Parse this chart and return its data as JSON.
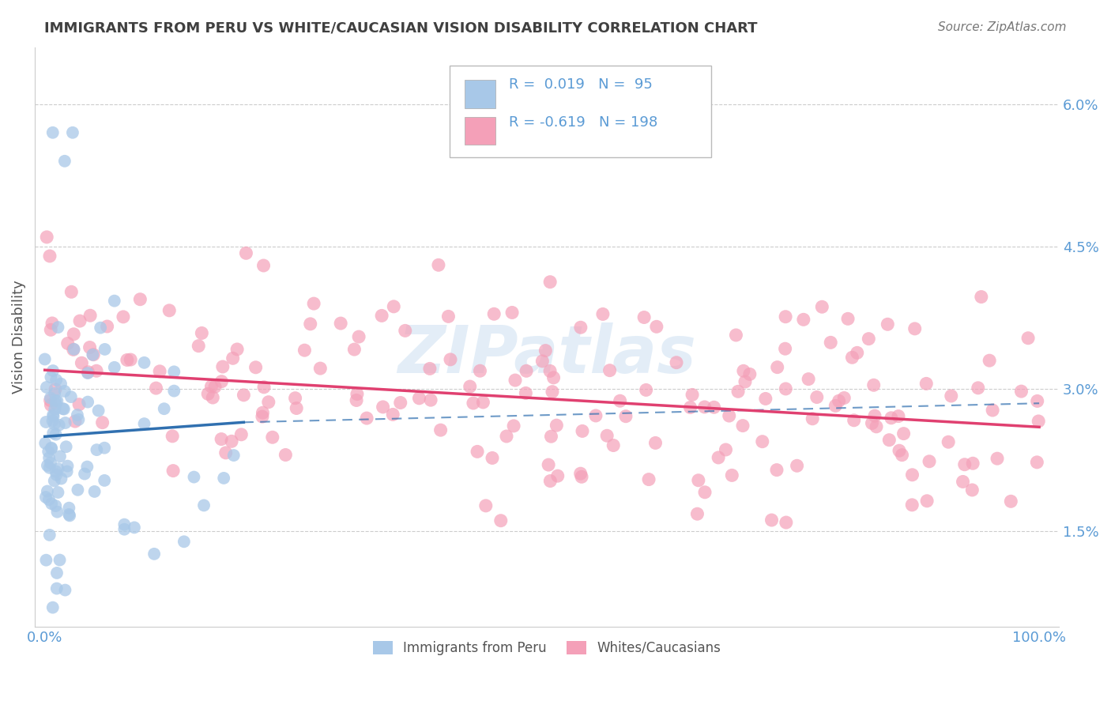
{
  "title": "IMMIGRANTS FROM PERU VS WHITE/CAUCASIAN VISION DISABILITY CORRELATION CHART",
  "source": "Source: ZipAtlas.com",
  "ylabel": "Vision Disability",
  "yticks": [
    0.015,
    0.03,
    0.045,
    0.06
  ],
  "ytick_labels": [
    "1.5%",
    "3.0%",
    "4.5%",
    "6.0%"
  ],
  "xtick_labels": [
    "0.0%",
    "",
    "",
    "",
    "100.0%"
  ],
  "color_blue": "#a8c8e8",
  "color_pink": "#f4a0b8",
  "color_line_blue": "#3070b0",
  "color_line_pink": "#e04070",
  "axis_color": "#5b9bd5",
  "title_color": "#404040",
  "background_color": "#ffffff",
  "grid_color": "#cccccc",
  "watermark": "ZIPatlas"
}
